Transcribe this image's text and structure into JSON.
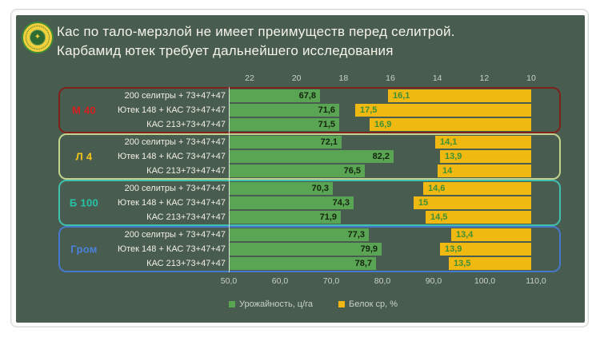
{
  "header": {
    "title_line1": "Кас по тало-мерзлой не имеет преимуществ перед селитрой.",
    "title_line2": "Карбамид ютек требует дальнейшего исследования",
    "logo_glyph": "✦"
  },
  "chart_data": {
    "type": "bar",
    "title": "Кас по тало-мерзлой не имеет преимуществ перед селитрой. Карбамид ютек требует дальнейшего исследования",
    "orientation": "horizontal",
    "top_axis_ticks": [
      "22",
      "20",
      "18",
      "16",
      "14",
      "12",
      "10"
    ],
    "top_axis_range": [
      22,
      10
    ],
    "bottom_axis_ticks": [
      "50,0",
      "60,0",
      "70,0",
      "80,0",
      "90,0",
      "100,0",
      "110,0"
    ],
    "bottom_axis_range": [
      50,
      110
    ],
    "legend": [
      {
        "label": "Урожайность, ц/га",
        "color": "#5AA553"
      },
      {
        "label": "Белок ср, %",
        "color": "#EFB911"
      }
    ],
    "series_colors": {
      "yield": "#5AA553",
      "protein": "#EFB911"
    },
    "groups": [
      {
        "name": "М 40",
        "label_color": "#D62121",
        "border_color": "#7E231B",
        "rows": [
          {
            "treatment": "200 селитры + 73+47+47",
            "yield": 67.8,
            "yield_label": "67,8",
            "protein": 16.1,
            "protein_label": "16,1"
          },
          {
            "treatment": "Ютек 148 + КАС 73+47+47",
            "yield": 71.6,
            "yield_label": "71,6",
            "protein": 17.5,
            "protein_label": "17,5"
          },
          {
            "treatment": "КАС 213+73+47+47",
            "yield": 71.5,
            "yield_label": "71,5",
            "protein": 16.9,
            "protein_label": "16,9"
          }
        ]
      },
      {
        "name": "Л 4",
        "label_color": "#F5C518",
        "border_color": "#C3D28D",
        "rows": [
          {
            "treatment": "200 селитры + 73+47+47",
            "yield": 72.1,
            "yield_label": "72,1",
            "protein": 14.1,
            "protein_label": "14,1"
          },
          {
            "treatment": "Ютек 148 + КАС 73+47+47",
            "yield": 82.2,
            "yield_label": "82,2",
            "protein": 13.9,
            "protein_label": "13,9"
          },
          {
            "treatment": "КАС 213+73+47+47",
            "yield": 76.5,
            "yield_label": "76,5",
            "protein": 14.0,
            "protein_label": "14"
          }
        ]
      },
      {
        "name": "Б 100",
        "label_color": "#25C4A8",
        "border_color": "#41BFAD",
        "rows": [
          {
            "treatment": "200 селитры + 73+47+47",
            "yield": 70.3,
            "yield_label": "70,3",
            "protein": 14.6,
            "protein_label": "14,6"
          },
          {
            "treatment": "Ютек 148 + КАС 73+47+47",
            "yield": 74.3,
            "yield_label": "74,3",
            "protein": 15.0,
            "protein_label": "15"
          },
          {
            "treatment": "КАС 213+73+47+47",
            "yield": 71.9,
            "yield_label": "71,9",
            "protein": 14.5,
            "protein_label": "14,5"
          }
        ]
      },
      {
        "name": "Гром",
        "label_color": "#4B82DC",
        "border_color": "#4678CC",
        "rows": [
          {
            "treatment": "200 селитры + 73+47+47",
            "yield": 77.3,
            "yield_label": "77,3",
            "protein": 13.4,
            "protein_label": "13,4"
          },
          {
            "treatment": "Ютек 148 + КАС 73+47+47",
            "yield": 79.9,
            "yield_label": "79,9",
            "protein": 13.9,
            "protein_label": "13,9"
          },
          {
            "treatment": "КАС 213+73+47+47",
            "yield": 78.7,
            "yield_label": "78,7",
            "protein": 13.5,
            "protein_label": "13,5"
          }
        ]
      }
    ]
  }
}
